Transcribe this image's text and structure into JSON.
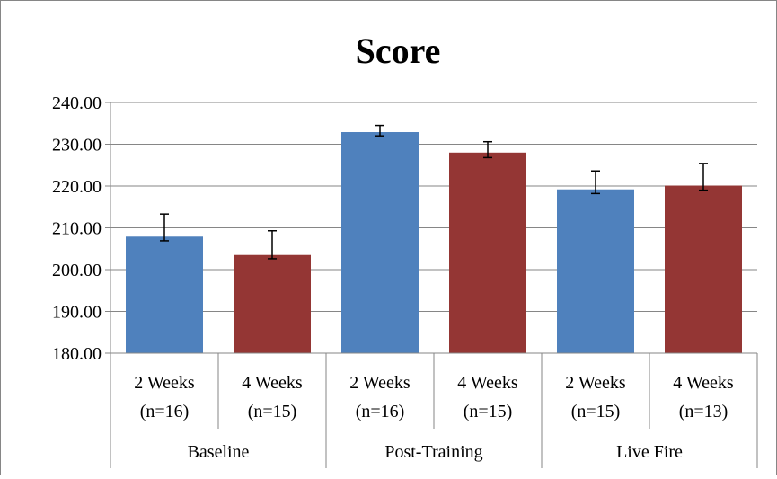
{
  "chart_data": {
    "type": "bar",
    "title": "Score",
    "xlabel": "",
    "ylabel": "",
    "ylim": [
      180,
      240
    ],
    "yticks": [
      "180.00",
      "190.00",
      "200.00",
      "210.00",
      "220.00",
      "230.00",
      "240.00"
    ],
    "grid": true,
    "legend": "none",
    "bar_labels": [
      [
        "2 Weeks",
        "(n=16)"
      ],
      [
        "4 Weeks",
        "(n=15)"
      ],
      [
        "2 Weeks",
        "(n=16)"
      ],
      [
        "4 Weeks",
        "(n=15)"
      ],
      [
        "2 Weeks",
        "(n=15)"
      ],
      [
        "4 Weeks",
        "(n=13)"
      ]
    ],
    "groups": [
      "Baseline",
      "Post-Training",
      "Live Fire"
    ],
    "values": [
      207.9,
      203.5,
      232.9,
      228.0,
      219.2,
      220.1
    ],
    "error_low": [
      1.0,
      0.9,
      0.9,
      1.2,
      1.0,
      1.1
    ],
    "error_high": [
      5.4,
      5.8,
      1.6,
      2.6,
      4.4,
      5.3
    ],
    "colors": [
      "#4f81bd",
      "#943634",
      "#4f81bd",
      "#943634",
      "#4f81bd",
      "#943634"
    ]
  }
}
